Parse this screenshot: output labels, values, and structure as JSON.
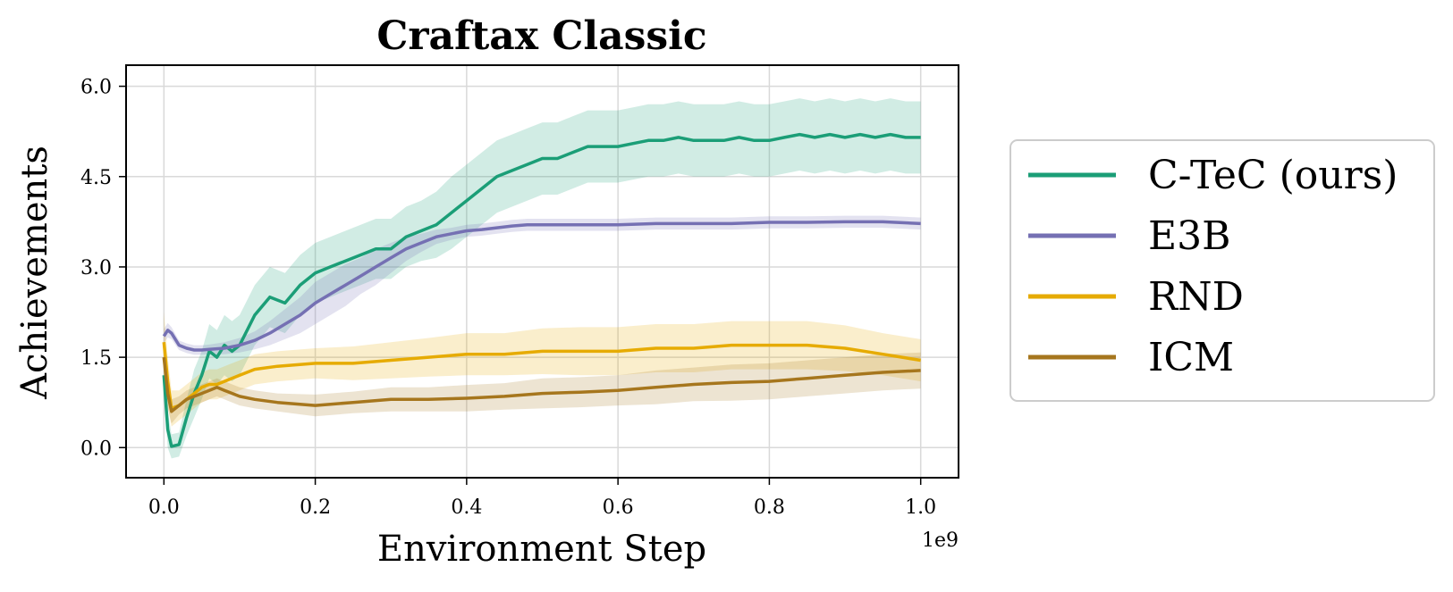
{
  "chart_data": {
    "type": "line",
    "title": "Craftax Classic",
    "xlabel": "Environment Step",
    "ylabel": "Achievements",
    "x_offset_label": "1e9",
    "xlim": [
      -0.05,
      1.05
    ],
    "ylim": [
      -0.5,
      6.35
    ],
    "x_ticks": [
      0.0,
      0.2,
      0.4,
      0.6,
      0.8,
      1.0
    ],
    "x_tick_labels": [
      "0.0",
      "0.2",
      "0.4",
      "0.6",
      "0.8",
      "1.0"
    ],
    "y_ticks": [
      0.0,
      1.5,
      3.0,
      4.5,
      6.0
    ],
    "y_tick_labels": [
      "0.0",
      "1.5",
      "3.0",
      "4.5",
      "6.0"
    ],
    "grid": true,
    "legend_position": "right, outside plot",
    "series": [
      {
        "name": "C-TeC (ours)",
        "color": "#1b9e77",
        "x": [
          0.0,
          0.005,
          0.01,
          0.02,
          0.03,
          0.04,
          0.05,
          0.06,
          0.07,
          0.08,
          0.09,
          0.1,
          0.12,
          0.14,
          0.16,
          0.18,
          0.2,
          0.22,
          0.24,
          0.26,
          0.28,
          0.3,
          0.32,
          0.34,
          0.36,
          0.38,
          0.4,
          0.42,
          0.44,
          0.46,
          0.48,
          0.5,
          0.52,
          0.54,
          0.56,
          0.58,
          0.6,
          0.62,
          0.64,
          0.66,
          0.68,
          0.7,
          0.72,
          0.74,
          0.76,
          0.78,
          0.8,
          0.82,
          0.84,
          0.86,
          0.88,
          0.9,
          0.92,
          0.94,
          0.96,
          0.98,
          1.0
        ],
        "y": [
          1.2,
          0.3,
          0.02,
          0.05,
          0.5,
          0.9,
          1.2,
          1.6,
          1.5,
          1.7,
          1.6,
          1.7,
          2.2,
          2.5,
          2.4,
          2.7,
          2.9,
          3.0,
          3.1,
          3.2,
          3.3,
          3.3,
          3.5,
          3.6,
          3.7,
          3.9,
          4.1,
          4.3,
          4.5,
          4.6,
          4.7,
          4.8,
          4.8,
          4.9,
          5.0,
          5.0,
          5.0,
          5.05,
          5.1,
          5.1,
          5.15,
          5.1,
          5.1,
          5.1,
          5.15,
          5.1,
          5.1,
          5.15,
          5.2,
          5.15,
          5.2,
          5.15,
          5.2,
          5.15,
          5.2,
          5.15,
          5.15
        ],
        "band": [
          0.3,
          0.3,
          0.2,
          0.2,
          0.3,
          0.4,
          0.4,
          0.45,
          0.45,
          0.5,
          0.5,
          0.5,
          0.5,
          0.5,
          0.5,
          0.5,
          0.5,
          0.5,
          0.5,
          0.5,
          0.5,
          0.5,
          0.5,
          0.5,
          0.55,
          0.6,
          0.6,
          0.6,
          0.6,
          0.6,
          0.6,
          0.6,
          0.6,
          0.6,
          0.6,
          0.6,
          0.6,
          0.6,
          0.6,
          0.6,
          0.6,
          0.6,
          0.6,
          0.6,
          0.6,
          0.6,
          0.6,
          0.6,
          0.6,
          0.6,
          0.6,
          0.6,
          0.6,
          0.6,
          0.6,
          0.6,
          0.6
        ]
      },
      {
        "name": "E3B",
        "color": "#7570b3",
        "x": [
          0.0,
          0.005,
          0.01,
          0.02,
          0.03,
          0.04,
          0.05,
          0.06,
          0.08,
          0.1,
          0.12,
          0.14,
          0.16,
          0.18,
          0.2,
          0.22,
          0.24,
          0.26,
          0.28,
          0.3,
          0.32,
          0.34,
          0.36,
          0.38,
          0.4,
          0.42,
          0.44,
          0.46,
          0.48,
          0.5,
          0.55,
          0.6,
          0.65,
          0.7,
          0.75,
          0.8,
          0.85,
          0.9,
          0.95,
          1.0
        ],
        "y": [
          1.85,
          1.95,
          1.9,
          1.7,
          1.65,
          1.62,
          1.62,
          1.63,
          1.65,
          1.7,
          1.78,
          1.9,
          2.05,
          2.2,
          2.4,
          2.55,
          2.7,
          2.85,
          3.0,
          3.15,
          3.3,
          3.4,
          3.5,
          3.55,
          3.6,
          3.62,
          3.65,
          3.68,
          3.7,
          3.7,
          3.7,
          3.7,
          3.72,
          3.72,
          3.72,
          3.74,
          3.74,
          3.75,
          3.75,
          3.72
        ],
        "band": [
          0.12,
          0.12,
          0.1,
          0.08,
          0.08,
          0.08,
          0.08,
          0.08,
          0.1,
          0.12,
          0.15,
          0.2,
          0.25,
          0.3,
          0.35,
          0.35,
          0.35,
          0.3,
          0.3,
          0.25,
          0.2,
          0.15,
          0.12,
          0.1,
          0.1,
          0.1,
          0.1,
          0.1,
          0.1,
          0.1,
          0.1,
          0.1,
          0.1,
          0.1,
          0.1,
          0.1,
          0.1,
          0.1,
          0.1,
          0.1
        ]
      },
      {
        "name": "RND",
        "color": "#e6ab02",
        "x": [
          0.0,
          0.005,
          0.01,
          0.02,
          0.03,
          0.04,
          0.05,
          0.06,
          0.07,
          0.08,
          0.1,
          0.12,
          0.15,
          0.2,
          0.25,
          0.3,
          0.35,
          0.4,
          0.45,
          0.5,
          0.55,
          0.6,
          0.65,
          0.7,
          0.75,
          0.8,
          0.85,
          0.9,
          0.95,
          1.0
        ],
        "y": [
          1.75,
          1.1,
          0.65,
          0.7,
          0.8,
          0.9,
          1.0,
          1.05,
          1.05,
          1.1,
          1.2,
          1.3,
          1.35,
          1.4,
          1.4,
          1.45,
          1.5,
          1.55,
          1.55,
          1.6,
          1.6,
          1.6,
          1.65,
          1.65,
          1.7,
          1.7,
          1.7,
          1.65,
          1.55,
          1.45
        ],
        "band": [
          0.5,
          0.4,
          0.3,
          0.25,
          0.25,
          0.25,
          0.25,
          0.25,
          0.25,
          0.25,
          0.25,
          0.25,
          0.25,
          0.25,
          0.28,
          0.3,
          0.32,
          0.35,
          0.35,
          0.38,
          0.4,
          0.4,
          0.4,
          0.4,
          0.4,
          0.4,
          0.4,
          0.38,
          0.35,
          0.35
        ]
      },
      {
        "name": "ICM",
        "color": "#a6761d",
        "x": [
          0.0,
          0.005,
          0.01,
          0.02,
          0.03,
          0.04,
          0.05,
          0.06,
          0.07,
          0.08,
          0.1,
          0.12,
          0.15,
          0.2,
          0.25,
          0.3,
          0.35,
          0.4,
          0.45,
          0.5,
          0.55,
          0.6,
          0.65,
          0.7,
          0.75,
          0.8,
          0.85,
          0.9,
          0.95,
          1.0
        ],
        "y": [
          1.5,
          0.9,
          0.6,
          0.7,
          0.8,
          0.85,
          0.9,
          0.95,
          1.0,
          0.95,
          0.85,
          0.8,
          0.75,
          0.7,
          0.75,
          0.8,
          0.8,
          0.82,
          0.85,
          0.9,
          0.92,
          0.95,
          1.0,
          1.05,
          1.08,
          1.1,
          1.15,
          1.2,
          1.25,
          1.28
        ],
        "band": [
          0.25,
          0.25,
          0.2,
          0.15,
          0.15,
          0.15,
          0.15,
          0.15,
          0.15,
          0.15,
          0.15,
          0.15,
          0.15,
          0.18,
          0.18,
          0.2,
          0.2,
          0.22,
          0.22,
          0.25,
          0.25,
          0.25,
          0.28,
          0.28,
          0.3,
          0.3,
          0.3,
          0.3,
          0.3,
          0.3
        ]
      }
    ]
  }
}
